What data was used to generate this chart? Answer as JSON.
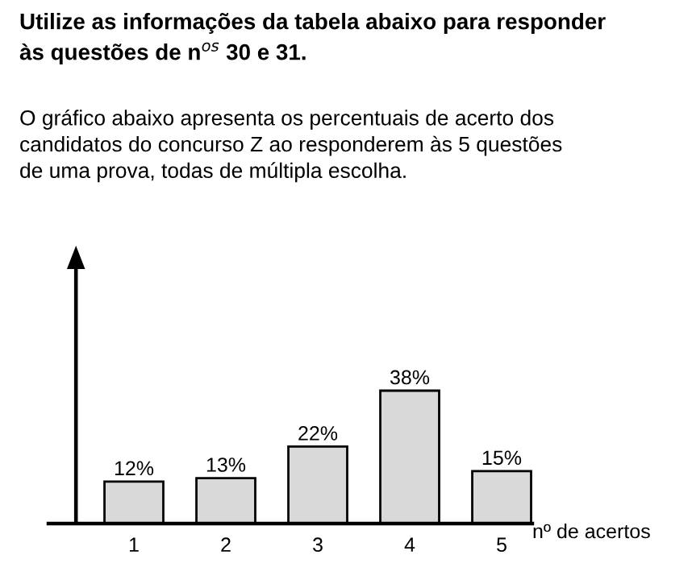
{
  "chart_data": {
    "type": "bar",
    "title": "Utilize as informações da tabela abaixo para responder\nàs questões de n$^{os}$ 30 e 31.",
    "subtitle": "O gráfico abaixo apresenta os percentuais de acerto dos\ncandidatos do concurso Z ao responderem às 5 questões\nde uma prova, todas de múltipla escolha.",
    "xlabel": "nº de acertos",
    "categories": [
      "1",
      "2",
      "3",
      "4",
      "5"
    ],
    "values": [
      12,
      13,
      22,
      38,
      15
    ],
    "value_labels": [
      "12%",
      "13%",
      "22%",
      "38%",
      "15%"
    ],
    "color": "#d9d9d9",
    "grid": false,
    "legend": false
  }
}
